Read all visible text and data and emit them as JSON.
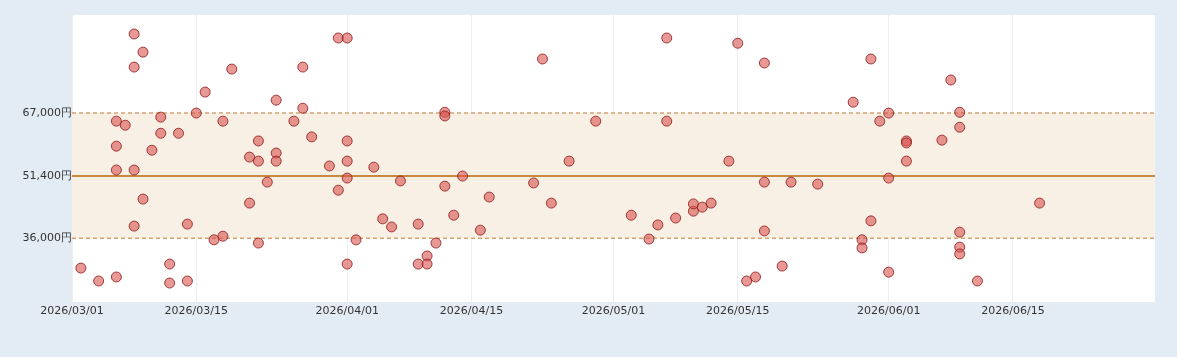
{
  "chart_data": {
    "type": "scatter",
    "x": [
      "2026-03-02",
      "2026-03-04",
      "2026-03-06",
      "2026-03-06",
      "2026-03-06",
      "2026-03-06",
      "2026-03-07",
      "2026-03-08",
      "2026-03-08",
      "2026-03-08",
      "2026-03-08",
      "2026-03-09",
      "2026-03-09",
      "2026-03-10",
      "2026-03-11",
      "2026-03-11",
      "2026-03-12",
      "2026-03-12",
      "2026-03-13",
      "2026-03-14",
      "2026-03-14",
      "2026-03-15",
      "2026-03-16",
      "2026-03-17",
      "2026-03-18",
      "2026-03-18",
      "2026-03-19",
      "2026-03-21",
      "2026-03-21",
      "2026-03-22",
      "2026-03-22",
      "2026-03-22",
      "2026-03-23",
      "2026-03-24",
      "2026-03-24",
      "2026-03-24",
      "2026-03-26",
      "2026-03-27",
      "2026-03-27",
      "2026-03-28",
      "2026-03-30",
      "2026-03-31",
      "2026-03-31",
      "2026-04-01",
      "2026-04-01",
      "2026-04-01",
      "2026-04-01",
      "2026-04-01",
      "2026-04-02",
      "2026-04-04",
      "2026-04-05",
      "2026-04-06",
      "2026-04-07",
      "2026-04-09",
      "2026-04-09",
      "2026-04-10",
      "2026-04-10",
      "2026-04-11",
      "2026-04-12",
      "2026-04-12",
      "2026-04-12",
      "2026-04-13",
      "2026-04-14",
      "2026-04-16",
      "2026-04-17",
      "2026-04-22",
      "2026-04-23",
      "2026-04-24",
      "2026-04-26",
      "2026-04-29",
      "2026-05-03",
      "2026-05-05",
      "2026-05-06",
      "2026-05-07",
      "2026-05-07",
      "2026-05-08",
      "2026-05-10",
      "2026-05-10",
      "2026-05-11",
      "2026-05-12",
      "2026-05-14",
      "2026-05-15",
      "2026-05-16",
      "2026-05-17",
      "2026-05-18",
      "2026-05-18",
      "2026-05-18",
      "2026-05-20",
      "2026-05-21",
      "2026-05-24",
      "2026-05-28",
      "2026-05-29",
      "2026-05-29",
      "2026-05-30",
      "2026-05-30",
      "2026-05-31",
      "2026-06-01",
      "2026-06-01",
      "2026-06-01",
      "2026-06-03",
      "2026-06-03",
      "2026-06-03",
      "2026-06-07",
      "2026-06-08",
      "2026-06-09",
      "2026-06-09",
      "2026-06-09",
      "2026-06-09",
      "2026-06-09",
      "2026-06-11",
      "2026-06-18"
    ],
    "series": [
      {
        "color": "#d9534f",
        "values": [
          28600,
          25400,
          65000,
          58800,
          52900,
          26400,
          64000,
          52900,
          78400,
          86600,
          39000,
          82100,
          45700,
          57800,
          66000,
          62000,
          24900,
          29600,
          62000,
          25400,
          39500,
          67000,
          72200,
          35600,
          65000,
          36500,
          77900,
          44700,
          56100,
          60100,
          55100,
          34800,
          49900,
          70200,
          57100,
          55100,
          65000,
          78400,
          68200,
          61100,
          53900,
          47900,
          85600,
          85600,
          60100,
          55100,
          50900,
          29600,
          35600,
          53600,
          40800,
          38800,
          50200,
          29600,
          39500,
          31600,
          29600,
          34800,
          48900,
          67200,
          66300,
          41700,
          51400,
          38000,
          46200,
          49700,
          80400,
          44700,
          55100,
          65000,
          41700,
          35800,
          39300,
          65000,
          85600,
          41000,
          42700,
          44500,
          43700,
          44700,
          55100,
          84300,
          25400,
          26400,
          79400,
          49900,
          37800,
          29100,
          49900,
          49400,
          69700,
          35600,
          33600,
          80400,
          40300,
          65000,
          67000,
          50900,
          27600,
          60100,
          59600,
          55100,
          60300,
          75200,
          63500,
          67200,
          37500,
          33800,
          32100,
          25400,
          44700
        ]
      }
    ],
    "xlim": [
      "2026-03-01",
      "2026-07-01"
    ],
    "xticks": [
      {
        "value": "2026-03-01",
        "label": "2026/03/01"
      },
      {
        "value": "2026-03-15",
        "label": "2026/03/15"
      },
      {
        "value": "2026-04-01",
        "label": "2026/04/01"
      },
      {
        "value": "2026-04-15",
        "label": "2026/04/15"
      },
      {
        "value": "2026-05-01",
        "label": "2026/05/01"
      },
      {
        "value": "2026-05-15",
        "label": "2026/05/15"
      },
      {
        "value": "2026-06-01",
        "label": "2026/06/01"
      },
      {
        "value": "2026-06-15",
        "label": "2026/06/15"
      }
    ],
    "ylim": [
      20200,
      91300
    ],
    "yticks": [
      {
        "value": 36000,
        "label": "36,000円"
      },
      {
        "value": 51400,
        "label": "51,400円"
      },
      {
        "value": 67000,
        "label": "67,000円"
      }
    ],
    "bands": [
      {
        "axis": "y",
        "from": 36000,
        "to": 67000,
        "color": "#f8f0e5"
      }
    ],
    "ref_lines": [
      {
        "axis": "y",
        "value": 67000,
        "color": "#d4a373",
        "line_style": "dashed"
      },
      {
        "axis": "y",
        "value": 51400,
        "color": "#c8893c",
        "line_style": "solid"
      },
      {
        "axis": "y",
        "value": 36000,
        "color": "#d4a373",
        "line_style": "dashed"
      }
    ],
    "grid": "x",
    "marker": "circle",
    "legend": false
  }
}
